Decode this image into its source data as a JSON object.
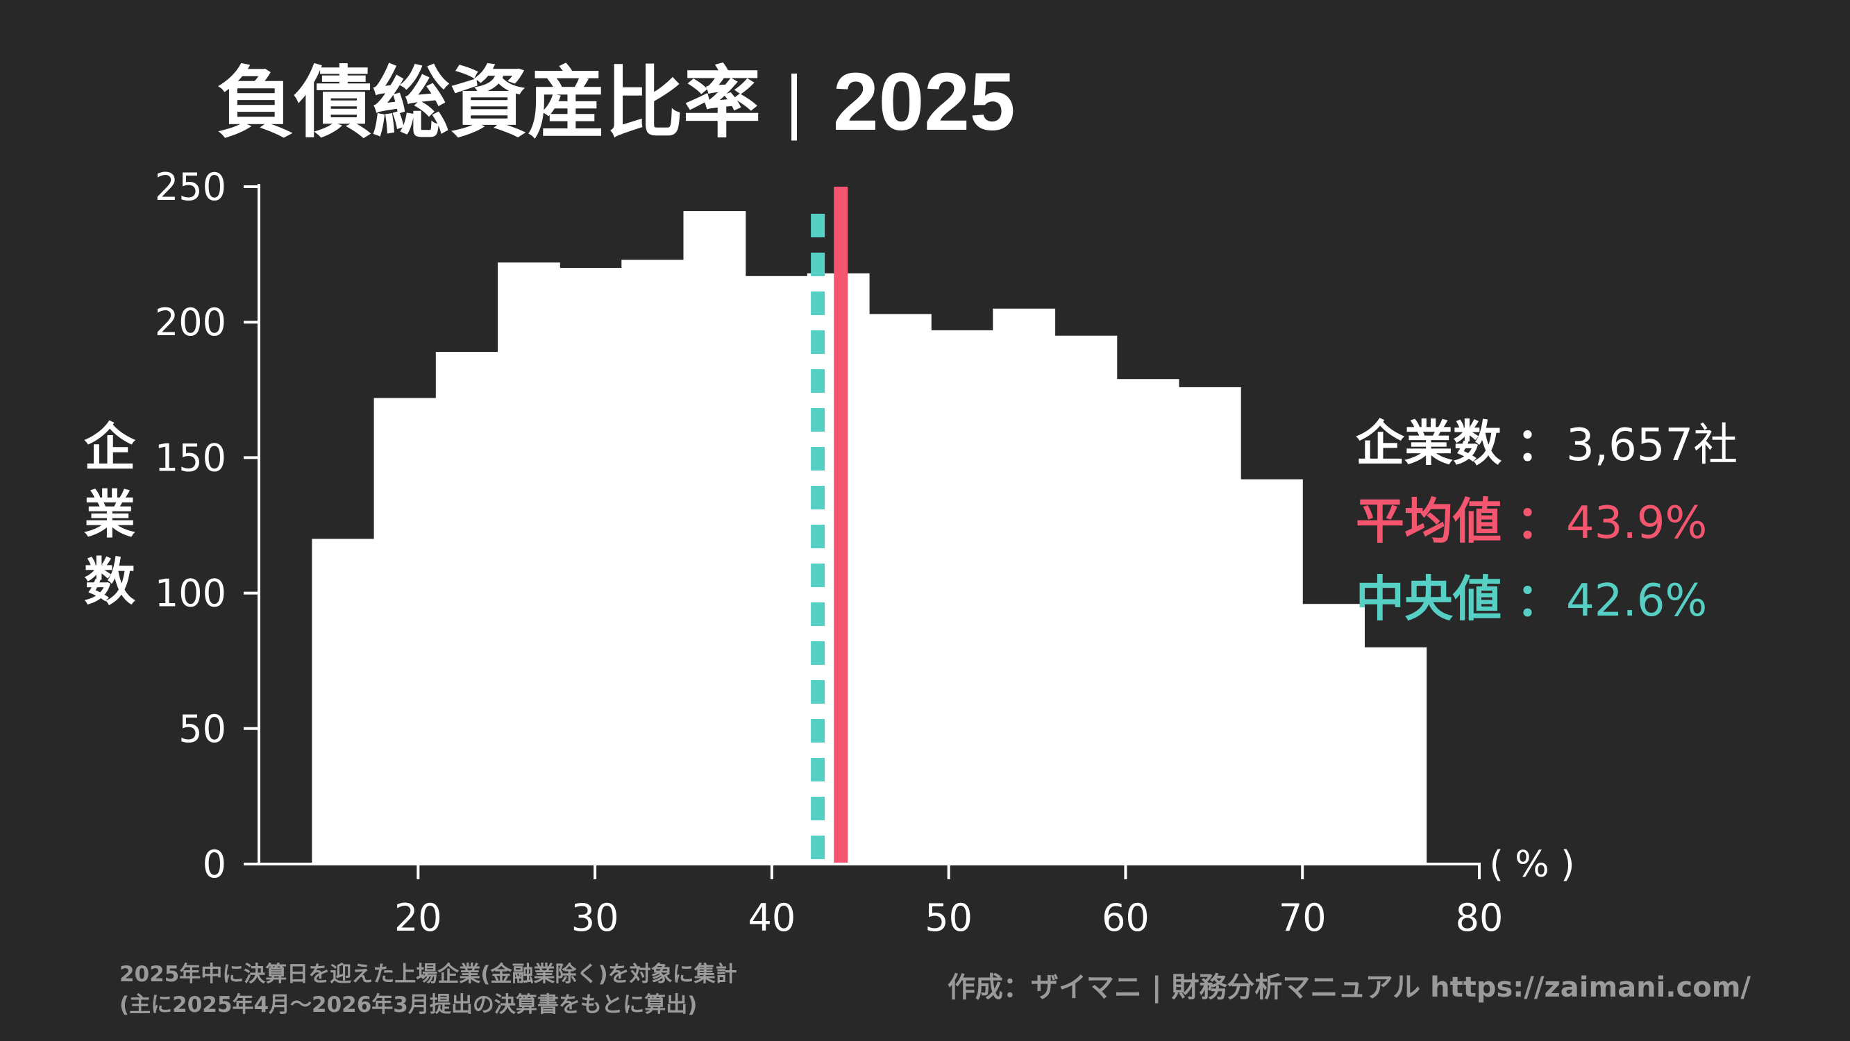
{
  "chart_data": {
    "type": "bar",
    "title": "負債総資産比率",
    "title_separator": "|",
    "year": "2025",
    "xlabel": "",
    "ylabel": "企業数",
    "x_unit": "( % )",
    "xlim": [
      11,
      80
    ],
    "ylim": [
      0,
      250
    ],
    "x_ticks": [
      20,
      30,
      40,
      50,
      60,
      70,
      80
    ],
    "y_ticks": [
      0,
      50,
      100,
      150,
      200,
      250
    ],
    "bin_width": 3.5,
    "bins": [
      {
        "start": 14.0,
        "count": 120
      },
      {
        "start": 17.5,
        "count": 172
      },
      {
        "start": 21.0,
        "count": 189
      },
      {
        "start": 24.5,
        "count": 222
      },
      {
        "start": 28.0,
        "count": 220
      },
      {
        "start": 31.5,
        "count": 223
      },
      {
        "start": 35.0,
        "count": 241
      },
      {
        "start": 38.5,
        "count": 217
      },
      {
        "start": 42.0,
        "count": 218
      },
      {
        "start": 45.5,
        "count": 203
      },
      {
        "start": 49.0,
        "count": 197
      },
      {
        "start": 52.5,
        "count": 205
      },
      {
        "start": 56.0,
        "count": 195
      },
      {
        "start": 59.5,
        "count": 179
      },
      {
        "start": 63.0,
        "count": 176
      },
      {
        "start": 66.5,
        "count": 142
      },
      {
        "start": 70.0,
        "count": 96
      },
      {
        "start": 73.5,
        "count": 80
      }
    ],
    "mean": 43.9,
    "median": 42.6,
    "grid": false
  },
  "stats": [
    {
      "label": "企業数",
      "sep": "：",
      "value": "3,657社",
      "color": "#ffffff"
    },
    {
      "label": "平均値",
      "sep": "：",
      "value": "43.9%",
      "color": "#f4566f"
    },
    {
      "label": "中央値",
      "sep": "：",
      "value": "42.6%",
      "color": "#56cfc4"
    }
  ],
  "footnote_lines": [
    "2025年中に決算日を迎えた上場企業(金融業除く)を対象に集計",
    "(主に2025年4月〜2026年3月提出の決算書をもとに算出)"
  ],
  "credit": "作成：ザイマニ | 財務分析マニュアル https://zaimani.com/",
  "colors": {
    "background": "#282828",
    "bars": "#ffffff",
    "axis": "#ffffff",
    "mean_line": "#f4566f",
    "median_line": "#56cfc4",
    "footnote": "#9a9a9a"
  }
}
